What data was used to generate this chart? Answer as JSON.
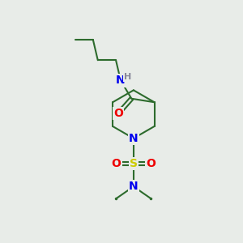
{
  "background_color": "#e8ece8",
  "bond_color": "#2d6b2d",
  "atom_colors": {
    "N": "#0000ee",
    "O": "#ee0000",
    "S": "#cccc00",
    "H": "#888899",
    "C": "#2d6b2d"
  },
  "bond_lw": 1.5,
  "font_size_atom": 10,
  "font_size_h": 8
}
